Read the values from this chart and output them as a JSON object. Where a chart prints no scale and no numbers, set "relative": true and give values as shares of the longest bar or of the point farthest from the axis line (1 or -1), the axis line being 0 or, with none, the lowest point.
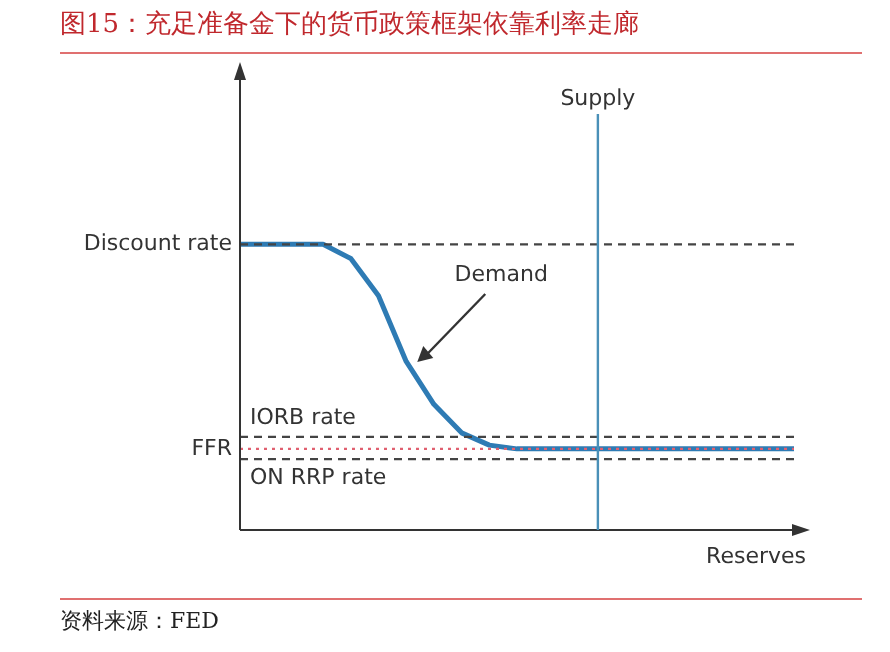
{
  "chart_data": {
    "type": "line",
    "relative": true,
    "title": "图15：充足准备金下的货币政策框架依靠利率走廊",
    "xlabel": "Reserves",
    "tick_labels": false,
    "grid": false,
    "categories": [
      null,
      null,
      null,
      null,
      null,
      null,
      null,
      null,
      null,
      null,
      null,
      null,
      null,
      null,
      null,
      null,
      null,
      null,
      null,
      null,
      null
    ],
    "series": [
      {
        "color": "#2e7bb4",
        "values": [
          1,
          1,
          1,
          1,
          0.95,
          0.82,
          0.59,
          0.44,
          0.34,
          0.297,
          0.284,
          0.284,
          0.284,
          0.284,
          0.284,
          0.284,
          0.284,
          0.284,
          0.284,
          0.284,
          0.284
        ]
      }
    ],
    "ref_lines": [
      {
        "axis": "y",
        "value": 1,
        "label": "Discount rate",
        "color": "#444444",
        "line_style": "dashed"
      },
      {
        "axis": "y",
        "value": 0.326,
        "label": "IORB rate",
        "color": "#444444",
        "line_style": "dashed"
      },
      {
        "axis": "y",
        "value": 0.284,
        "label": "FFR",
        "color": "#e06070",
        "line_style": "dotted"
      },
      {
        "axis": "y",
        "value": 0.248,
        "label": "ON RRP rate",
        "color": "#444444",
        "line_style": "dashed"
      }
    ],
    "annotations": [
      "Demand",
      "Supply",
      "资料来源：FED"
    ]
  }
}
